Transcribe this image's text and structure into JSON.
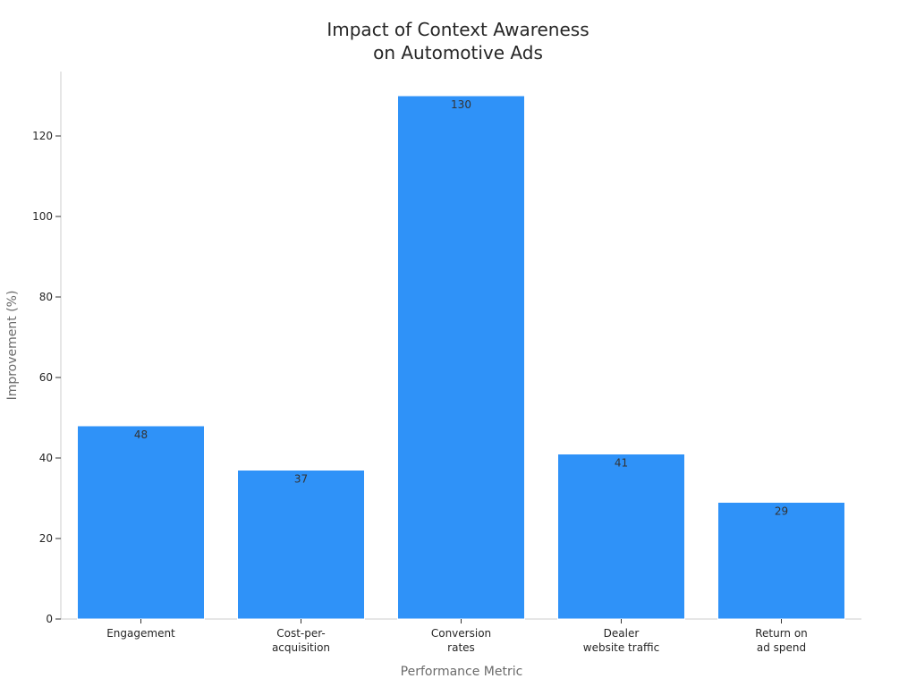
{
  "chart_data": {
    "type": "bar",
    "title_lines": [
      "Impact of Context Awareness",
      "on Automotive Ads"
    ],
    "xlabel": "Performance Metric",
    "ylabel": "Improvement (%)",
    "categories": [
      [
        "Engagement"
      ],
      [
        "Cost-per-",
        "acquisition"
      ],
      [
        "Conversion",
        "rates"
      ],
      [
        "Dealer",
        "website traffic"
      ],
      [
        "Return on",
        "ad spend"
      ]
    ],
    "values": [
      48,
      37,
      130,
      41,
      29
    ],
    "data_labels": [
      "48",
      "37",
      "130",
      "41",
      "29"
    ],
    "ylim": [
      0,
      136
    ],
    "yticks": [
      0,
      20,
      40,
      60,
      80,
      100,
      120
    ],
    "bar_color": "#2f92f8",
    "grid": false,
    "legend": "none"
  }
}
